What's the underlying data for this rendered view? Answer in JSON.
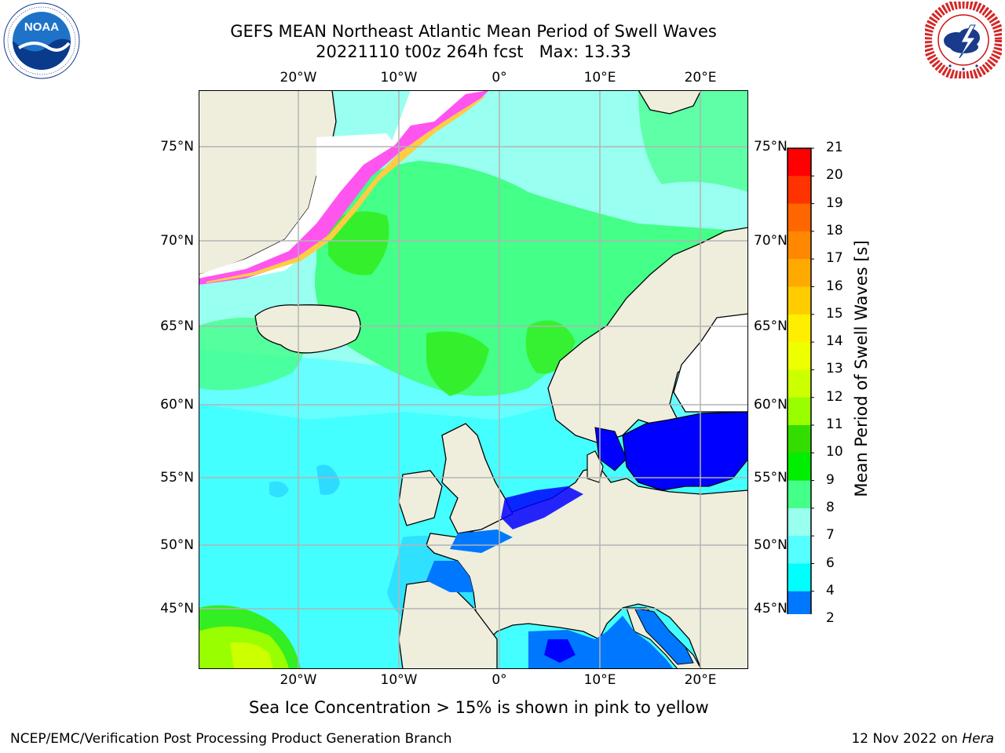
{
  "title": {
    "line1": "GEFS MEAN Northeast Atlantic Mean Period of Swell Waves",
    "line2": "20221110 t00z 264h fcst   Max: 13.33"
  },
  "logos": {
    "left": "NOAA",
    "right": "NATIONAL WEATHER SERVICE",
    "left_icon": "noaa-logo",
    "right_icon": "nws-logo"
  },
  "map": {
    "lon_labels": [
      "20°W",
      "10°W",
      "0°",
      "10°E",
      "20°E"
    ],
    "lat_labels": [
      "75°N",
      "70°N",
      "65°N",
      "60°N",
      "55°N",
      "50°N",
      "45°N"
    ],
    "colors": {
      "land": "#efeedd",
      "ice_white": "#ffffff",
      "grid": "#b4b4b4",
      "coast": "#000000"
    }
  },
  "colorbar": {
    "title": "Mean Period of Swell Waves [s]",
    "ticks": [
      "21",
      "20",
      "19",
      "18",
      "17",
      "16",
      "15",
      "14",
      "13",
      "12",
      "11",
      "10",
      "9",
      "8",
      "7",
      "6",
      "4",
      "2"
    ],
    "colors_top_to_bottom": [
      "#ff0000",
      "#ff3300",
      "#ff6600",
      "#ff8800",
      "#ffaa00",
      "#ffcc00",
      "#ffee00",
      "#eeff00",
      "#ccff00",
      "#99ff00",
      "#33dd00",
      "#00ee00",
      "#44ff88",
      "#99ffee",
      "#55ffff",
      "#00ffff",
      "#0077ff",
      "#0000ff"
    ],
    "extend": "min"
  },
  "footnote": "Sea Ice Concentration > 15% is shown in pink to yellow",
  "footer": {
    "left": "NCEP/EMC/Verification Post Processing Product Generation Branch",
    "right_date": "12 Nov 2022 on",
    "right_host": "Hera"
  }
}
